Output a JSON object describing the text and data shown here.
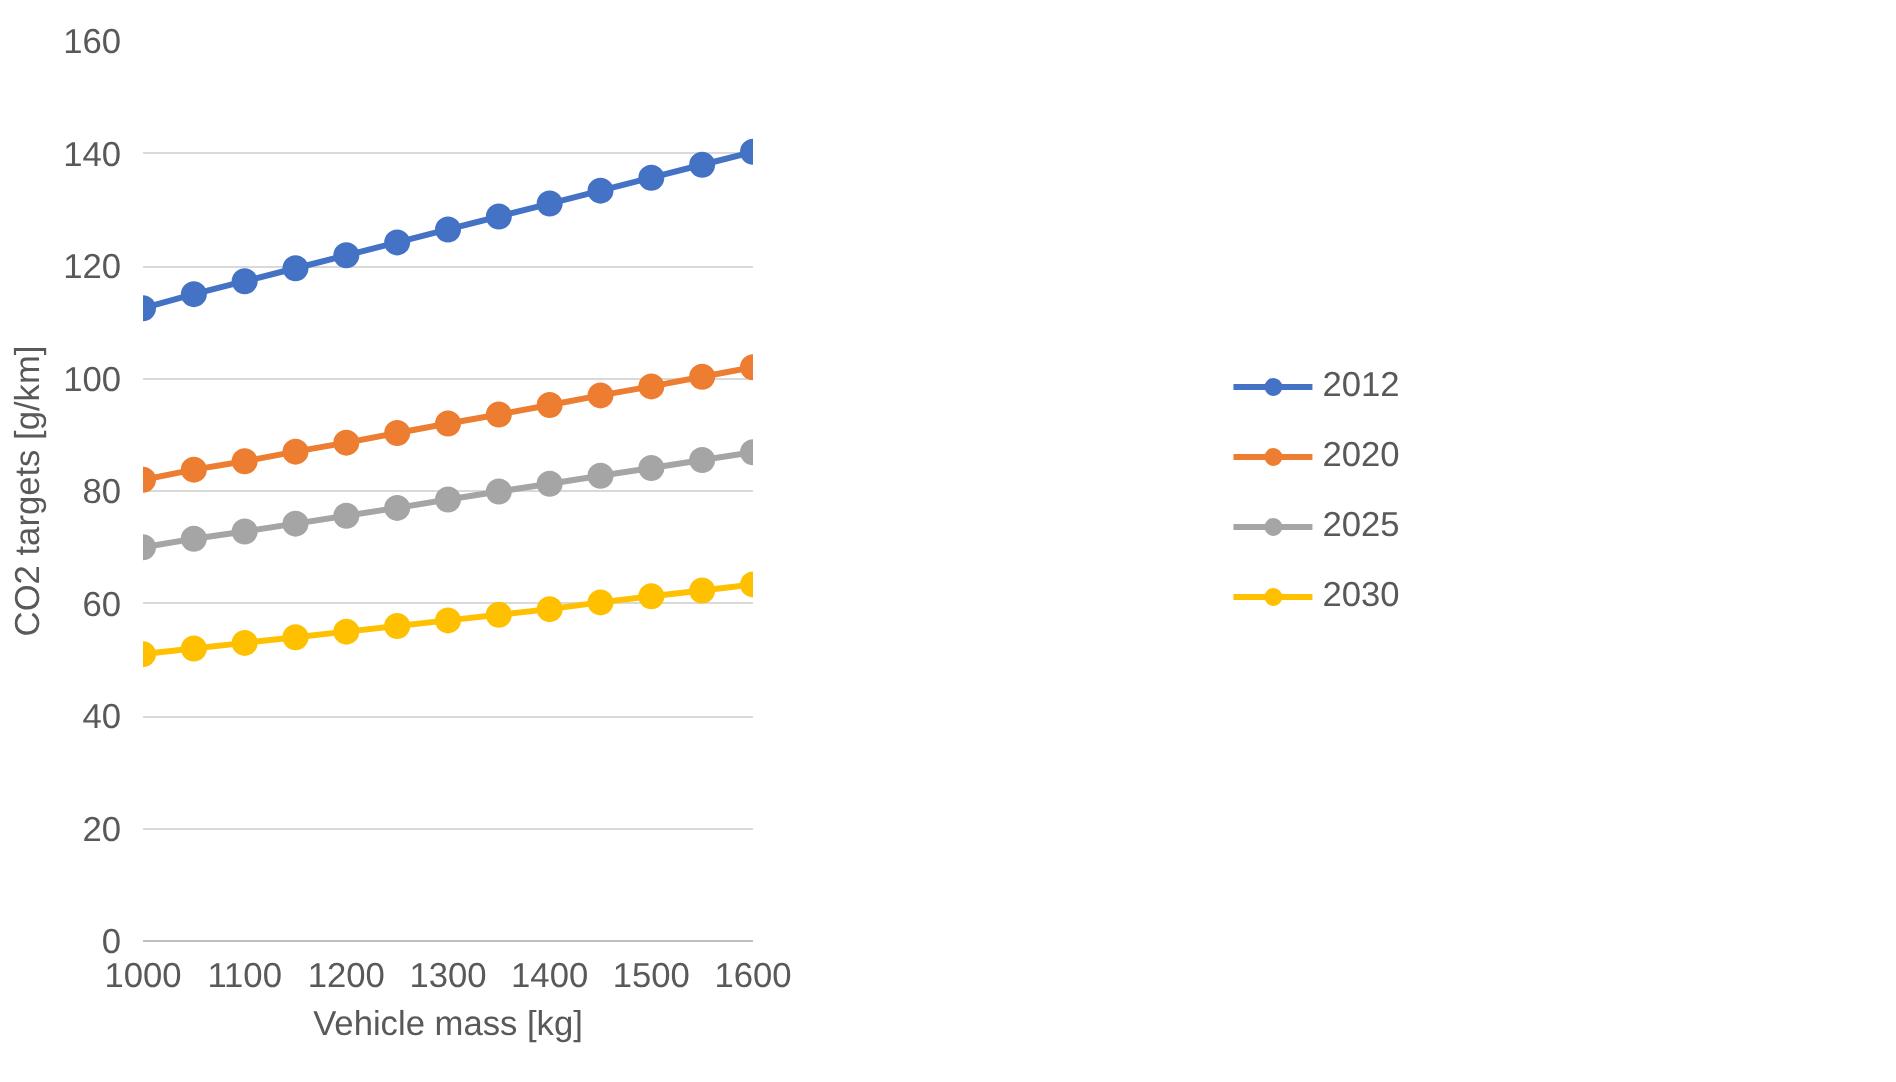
{
  "chart_data": {
    "type": "line",
    "xlabel": "Vehicle mass [kg]",
    "ylabel": "CO2 targets [g/km]",
    "x": [
      1000,
      1050,
      1100,
      1150,
      1200,
      1250,
      1300,
      1350,
      1400,
      1450,
      1500,
      1550,
      1600
    ],
    "series": [
      {
        "name": "2012",
        "color": "#4472c4",
        "values": [
          112.5,
          115,
          117.3,
          119.6,
          121.9,
          124.2,
          126.5,
          128.8,
          131.1,
          133.4,
          135.7,
          138,
          140.3
        ]
      },
      {
        "name": "2020",
        "color": "#ed7d31",
        "values": [
          82,
          83.8,
          85.3,
          87,
          88.6,
          90.3,
          92,
          93.6,
          95.3,
          97,
          98.6,
          100.3,
          102
        ]
      },
      {
        "name": "2025",
        "color": "#a5a5a5",
        "values": [
          70,
          71.5,
          72.8,
          74.2,
          75.6,
          77,
          78.5,
          79.9,
          81.3,
          82.7,
          84.1,
          85.5,
          86.9
        ]
      },
      {
        "name": "2030",
        "color": "#ffc000",
        "values": [
          51,
          52,
          53,
          54,
          55,
          56,
          57,
          58,
          59,
          60.2,
          61.3,
          62.3,
          63.4
        ]
      }
    ],
    "xlim": [
      1000,
      1600
    ],
    "xticks": [
      1000,
      1100,
      1200,
      1300,
      1400,
      1500,
      1600
    ],
    "ylim": [
      0,
      160
    ],
    "yticks": [
      0,
      20,
      40,
      60,
      80,
      100,
      120,
      140,
      160
    ],
    "grid": "y",
    "legend": "right",
    "marker": "circle",
    "line_style": "solid"
  }
}
